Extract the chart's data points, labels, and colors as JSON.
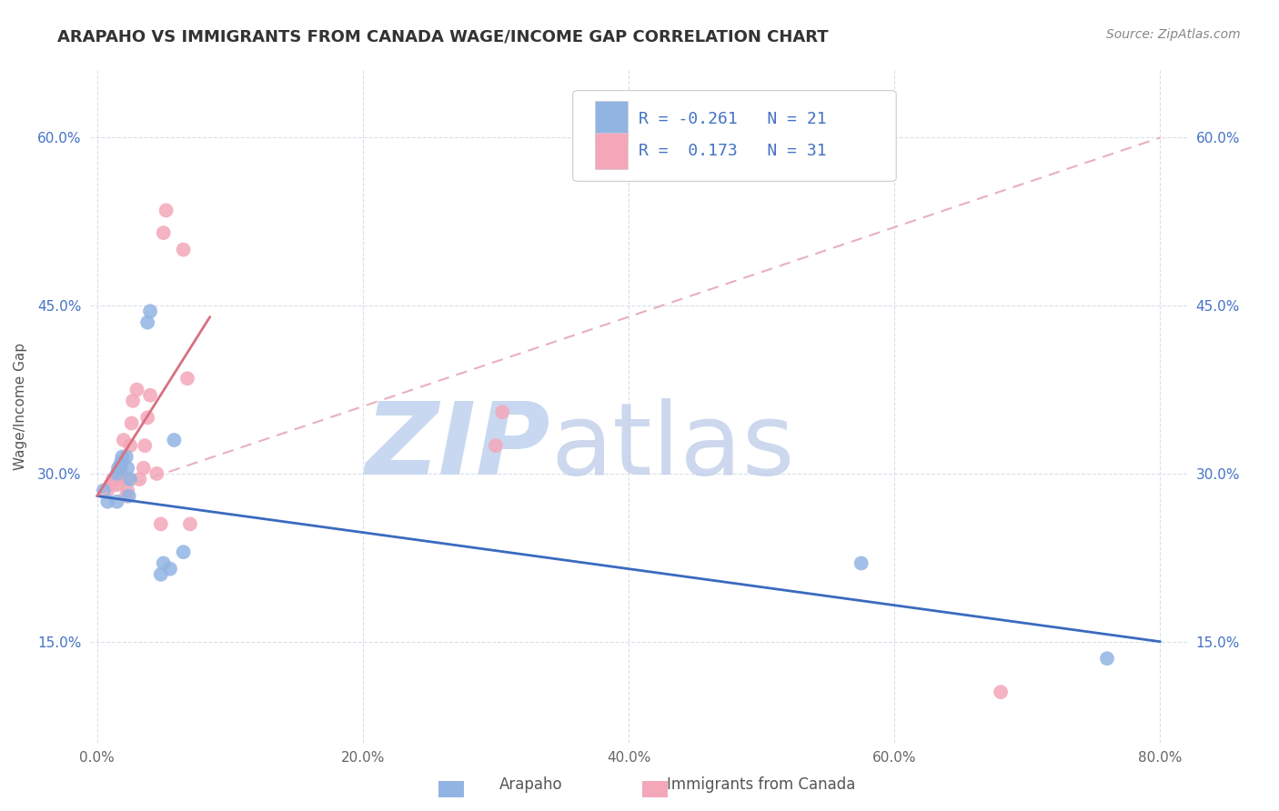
{
  "title": "ARAPAHO VS IMMIGRANTS FROM CANADA WAGE/INCOME GAP CORRELATION CHART",
  "source_text": "Source: ZipAtlas.com",
  "ylabel": "Wage/Income Gap",
  "xlim": [
    -0.005,
    0.82
  ],
  "ylim": [
    0.06,
    0.66
  ],
  "xticks": [
    0.0,
    0.2,
    0.4,
    0.6,
    0.8
  ],
  "xtick_labels": [
    "0.0%",
    "20.0%",
    "40.0%",
    "60.0%",
    "80.0%"
  ],
  "yticks": [
    0.15,
    0.3,
    0.45,
    0.6
  ],
  "ytick_labels": [
    "15.0%",
    "30.0%",
    "45.0%",
    "60.0%"
  ],
  "legend_R": [
    "-0.261",
    "0.173"
  ],
  "legend_N": [
    "21",
    "31"
  ],
  "arapaho_color": "#92b4e3",
  "canada_color": "#f4a7b9",
  "arapaho_line_color": "#3a6abf",
  "canada_line_solid_color": "#d97080",
  "canada_line_dash_color": "#e8b0bb",
  "watermark_zip": "ZIP",
  "watermark_atlas": "atlas",
  "watermark_color": "#c8d8f0",
  "background_color": "#ffffff",
  "grid_color": "#d8e0ec",
  "arapaho_x": [
    0.005,
    0.008,
    0.015,
    0.016,
    0.017,
    0.018,
    0.019,
    0.015,
    0.022,
    0.023,
    0.025,
    0.024,
    0.038,
    0.04,
    0.048,
    0.05,
    0.055,
    0.058,
    0.065,
    0.575,
    0.76
  ],
  "arapaho_y": [
    0.285,
    0.275,
    0.3,
    0.305,
    0.305,
    0.31,
    0.315,
    0.275,
    0.315,
    0.305,
    0.295,
    0.28,
    0.435,
    0.445,
    0.21,
    0.22,
    0.215,
    0.33,
    0.23,
    0.22,
    0.135
  ],
  "canada_x": [
    0.008,
    0.01,
    0.012,
    0.015,
    0.016,
    0.017,
    0.018,
    0.019,
    0.02,
    0.022,
    0.023,
    0.024,
    0.025,
    0.026,
    0.027,
    0.03,
    0.032,
    0.035,
    0.036,
    0.038,
    0.04,
    0.045,
    0.048,
    0.05,
    0.052,
    0.065,
    0.068,
    0.07,
    0.3,
    0.305,
    0.68
  ],
  "canada_y": [
    0.285,
    0.29,
    0.295,
    0.29,
    0.295,
    0.3,
    0.305,
    0.31,
    0.33,
    0.28,
    0.285,
    0.295,
    0.325,
    0.345,
    0.365,
    0.375,
    0.295,
    0.305,
    0.325,
    0.35,
    0.37,
    0.3,
    0.255,
    0.515,
    0.535,
    0.5,
    0.385,
    0.255,
    0.325,
    0.355,
    0.105
  ],
  "title_fontsize": 13,
  "axis_label_fontsize": 11,
  "tick_fontsize": 11,
  "source_fontsize": 10,
  "legend_fontsize": 13
}
